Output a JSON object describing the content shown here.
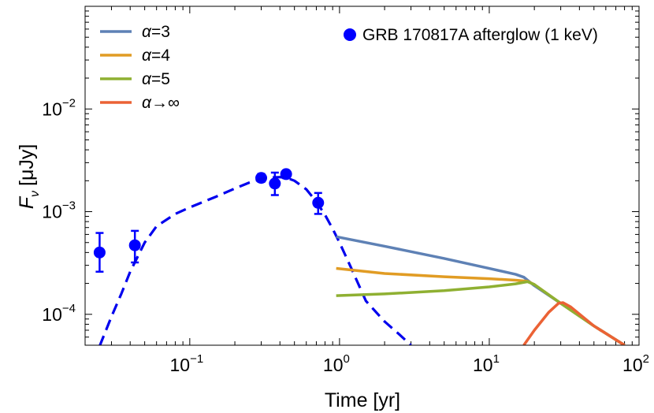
{
  "chart_data": {
    "type": "line",
    "xlabel": "Time [yr]",
    "ylabel": "F_ν [μJy]",
    "ylabel_parts": {
      "symbol": "F",
      "subscript": "ν",
      "unit": "[μJy]"
    },
    "xscale": "log",
    "yscale": "log",
    "xlim": [
      0.02,
      100
    ],
    "ylim": [
      5e-05,
      0.1
    ],
    "x_ticks": [
      {
        "value": 0.1,
        "base": "10",
        "exp": "−1"
      },
      {
        "value": 1,
        "label": "10",
        "exp": "0"
      },
      {
        "value": 10,
        "base": "10",
        "exp": "1"
      },
      {
        "value": 100,
        "base": "10",
        "exp": "2"
      }
    ],
    "y_ticks": [
      {
        "value": 0.0001,
        "base": "10",
        "exp": "−4"
      },
      {
        "value": 0.001,
        "base": "10",
        "exp": "−3"
      },
      {
        "value": 0.01,
        "base": "10",
        "exp": "−2"
      }
    ],
    "legend_placement": "top-left and top-right",
    "series": [
      {
        "name": "GRB 170817A afterglow (1 keV)",
        "kind": "points",
        "color": "#0000ff",
        "points": [
          {
            "x": 0.025,
            "y": 0.0004,
            "ylo": 0.00026,
            "yhi": 0.00062
          },
          {
            "x": 0.043,
            "y": 0.00047,
            "ylo": 0.00032,
            "yhi": 0.00065
          },
          {
            "x": 0.3,
            "y": 0.00213,
            "ylo": 0.00195,
            "yhi": 0.00233
          },
          {
            "x": 0.37,
            "y": 0.00188,
            "ylo": 0.00145,
            "yhi": 0.0024
          },
          {
            "x": 0.44,
            "y": 0.00232,
            "ylo": 0.00212,
            "yhi": 0.00252
          },
          {
            "x": 0.72,
            "y": 0.00122,
            "ylo": 0.00095,
            "yhi": 0.00152
          }
        ]
      },
      {
        "name": "",
        "kind": "dashed-fit",
        "color": "#0000ee",
        "x": [
          0.025,
          0.03,
          0.035,
          0.04,
          0.05,
          0.06,
          0.08,
          0.1,
          0.15,
          0.2,
          0.25,
          0.3,
          0.35,
          0.4,
          0.45,
          0.5,
          0.6,
          0.7,
          0.8,
          0.9,
          1.0,
          1.2,
          1.5,
          2.0,
          2.5,
          3.0
        ],
        "y": [
          4.9e-05,
          9.5e-05,
          0.00016,
          0.00026,
          0.0005,
          0.00072,
          0.00095,
          0.0011,
          0.0014,
          0.00168,
          0.00192,
          0.00208,
          0.00215,
          0.00217,
          0.00212,
          0.002,
          0.00165,
          0.00125,
          0.00093,
          0.00068,
          0.0005,
          0.00028,
          0.000135,
          8.5e-05,
          6.4e-05,
          5e-05
        ]
      },
      {
        "name": "α=3",
        "kind": "line",
        "color": "#5e81b5",
        "x": [
          0.95,
          2,
          5,
          10,
          15,
          17,
          20,
          30,
          50,
          80
        ],
        "y": [
          0.00057,
          0.00046,
          0.00035,
          0.00028,
          0.000245,
          0.00023,
          0.00019,
          0.000128,
          7.7e-05,
          5e-05
        ]
      },
      {
        "name": "α=4",
        "kind": "line",
        "color": "#e19c24",
        "x": [
          0.95,
          2,
          5,
          10,
          15,
          18,
          20,
          30,
          50,
          80
        ],
        "y": [
          0.00028,
          0.00025,
          0.000232,
          0.000222,
          0.000215,
          0.00021,
          0.000195,
          0.000128,
          7.7e-05,
          5e-05
        ]
      },
      {
        "name": "α=5",
        "kind": "line",
        "color": "#8fb032",
        "x": [
          0.95,
          2,
          5,
          10,
          15,
          18,
          20,
          30,
          50,
          80
        ],
        "y": [
          0.000152,
          0.000158,
          0.00017,
          0.000185,
          0.000198,
          0.000208,
          0.000195,
          0.000128,
          7.7e-05,
          5e-05
        ]
      },
      {
        "name": "α→∞",
        "kind": "line",
        "color": "#eb6235",
        "x": [
          17,
          20,
          25,
          29,
          31,
          35,
          50,
          80
        ],
        "y": [
          5e-05,
          7e-05,
          0.000105,
          0.000128,
          0.00013,
          0.000118,
          7.7e-05,
          5e-05
        ]
      }
    ]
  }
}
